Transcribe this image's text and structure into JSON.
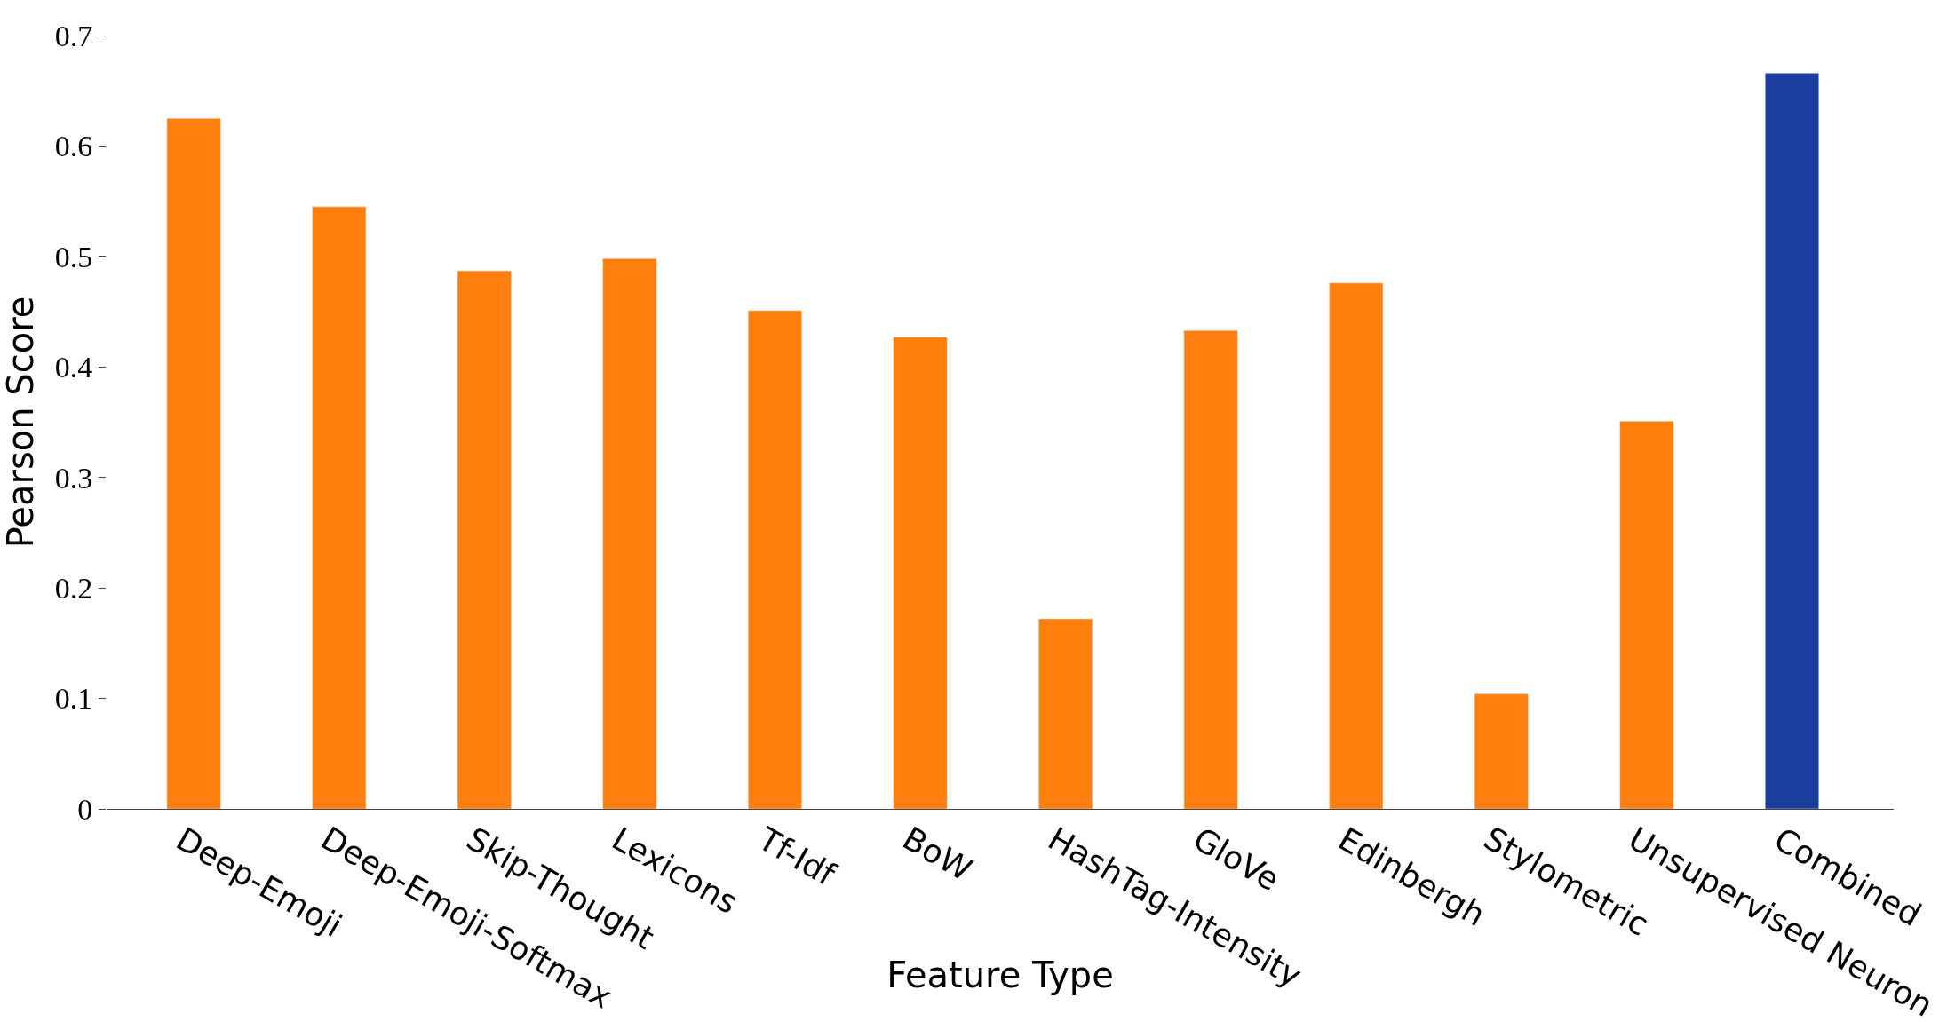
{
  "chart_data": {
    "type": "bar",
    "xlabel": "Feature Type",
    "ylabel": "Pearson Score",
    "categories": [
      "Deep-Emoji",
      "Deep-Emoji-Softmax",
      "Skip-Thought",
      "Lexicons",
      "Tf-Idf",
      "BoW",
      "HashTag-Intensity",
      "GloVe",
      "Edinbergh",
      "Stylometric",
      "Unsupervised Neuron",
      "Combined"
    ],
    "values": [
      0.625,
      0.545,
      0.487,
      0.498,
      0.451,
      0.427,
      0.172,
      0.433,
      0.476,
      0.104,
      0.351,
      0.666
    ],
    "colors": [
      "#ff7f0e",
      "#ff7f0e",
      "#ff7f0e",
      "#ff7f0e",
      "#ff7f0e",
      "#ff7f0e",
      "#ff7f0e",
      "#ff7f0e",
      "#ff7f0e",
      "#ff7f0e",
      "#ff7f0e",
      "#1a3d9e"
    ],
    "ylim": [
      0,
      0.7
    ],
    "yticks": [
      0,
      0.1,
      0.2,
      0.3,
      0.4,
      0.5,
      0.6,
      0.7
    ]
  }
}
